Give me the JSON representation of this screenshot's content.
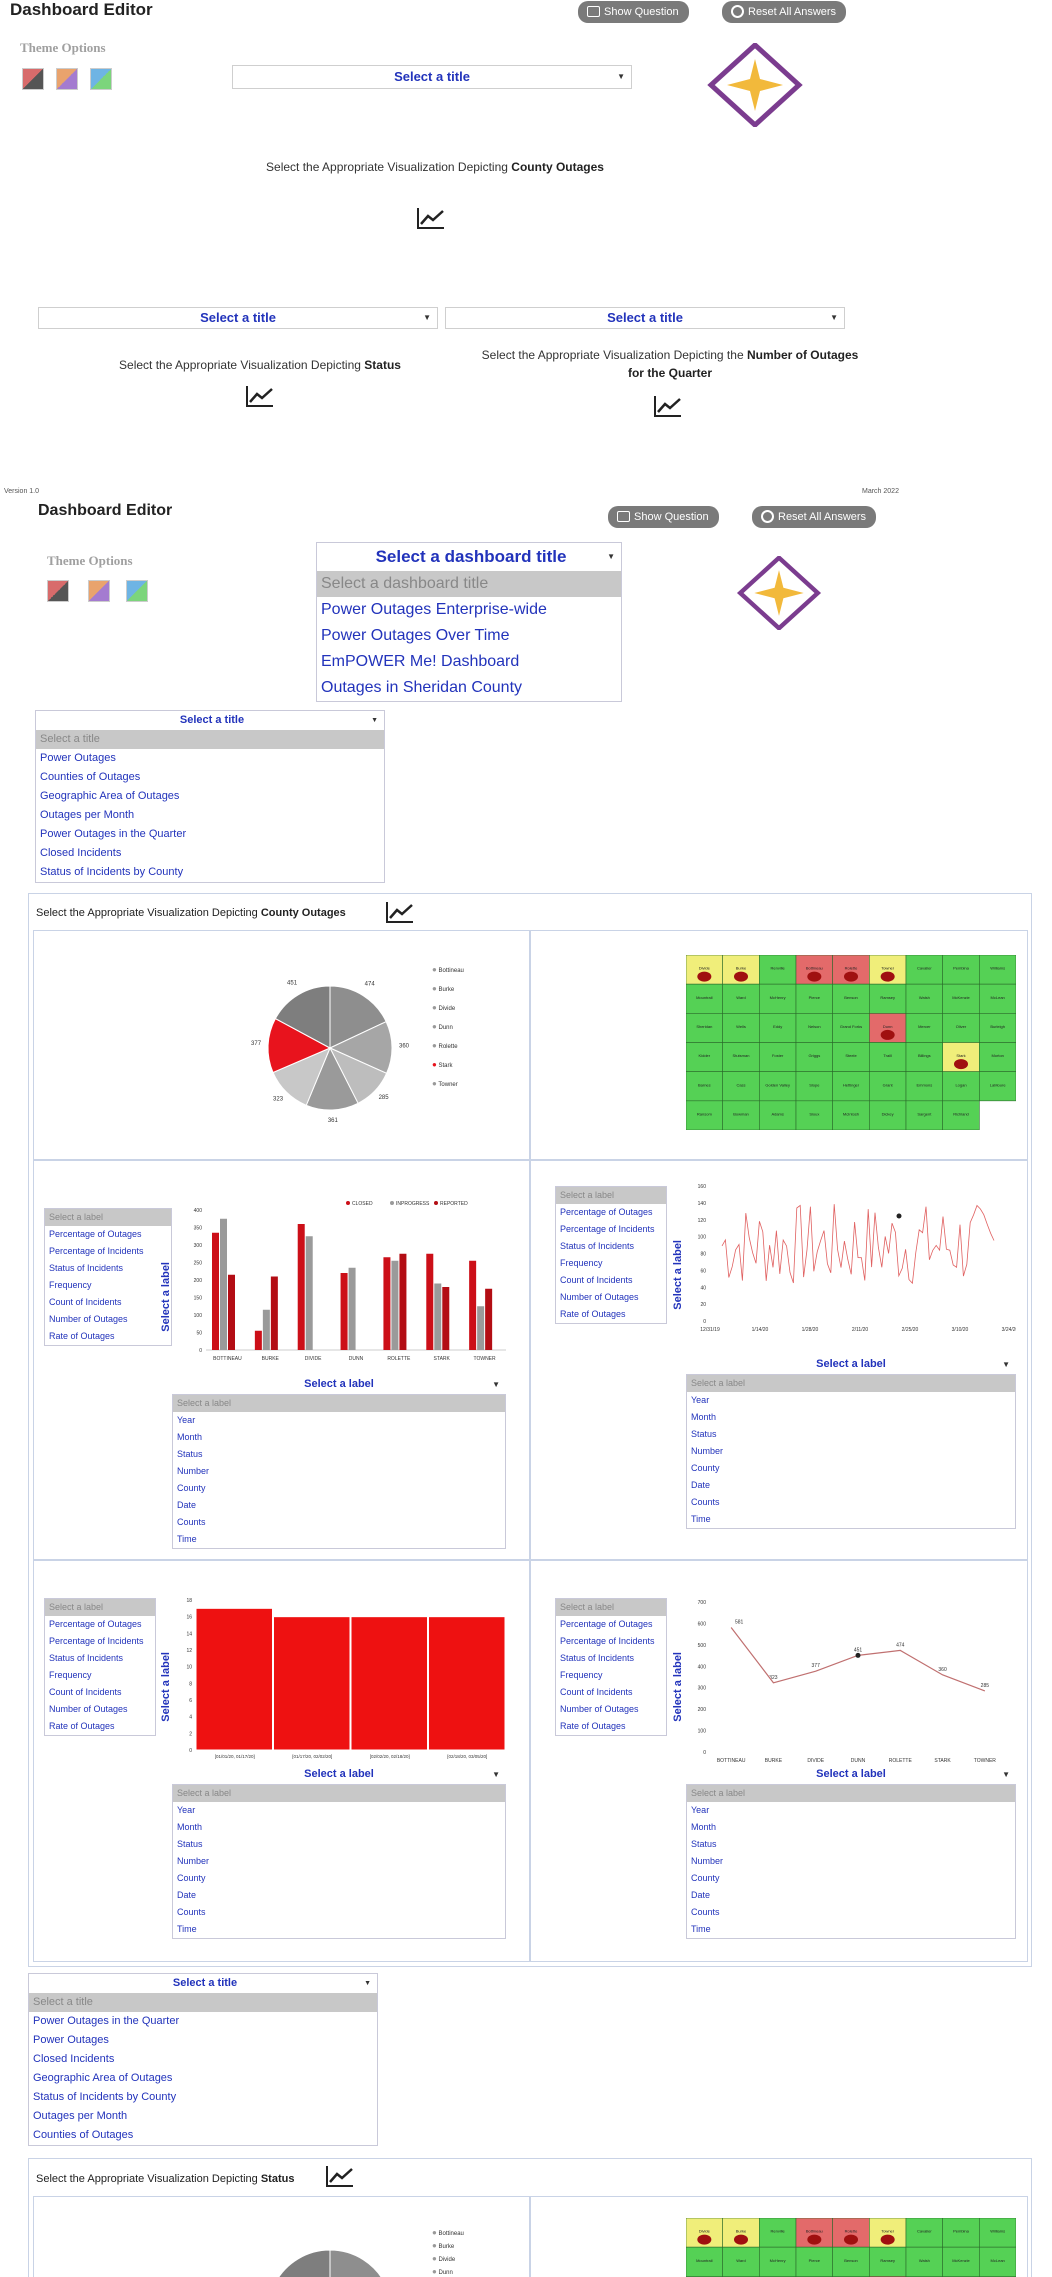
{
  "header": {
    "title": "Dashboard Editor",
    "theme_label": "Theme Options",
    "show_question": "Show Question",
    "reset_answers": "Reset All Answers",
    "version": "Version 1.0",
    "date": "March 2022"
  },
  "top": {
    "select_title": "Select a title",
    "caption_county_pre": "Select the Appropriate Visualization Depicting",
    "caption_county_bold": "County Outages",
    "caption_status_pre": "Select the Appropriate Visualization Depicting",
    "caption_status_bold": "Status",
    "caption_number_pre": "Select the Appropriate Visualization Depicting the",
    "caption_number_bold": "Number of Outages for the Quarter"
  },
  "dashboard_dropdown": {
    "label": "Select a dashboard title",
    "options": [
      "Select a dashboard title",
      "Power Outages Enterprise-wide",
      "Power Outages Over Time",
      "EmPOWER Me! Dashboard",
      "Outages in Sheridan County"
    ]
  },
  "title_dropdown_1": {
    "label": "Select a title",
    "options": [
      "Select a title",
      "Power Outages",
      "Counties of Outages",
      "Geographic Area of Outages",
      "Outages per Month",
      "Power Outages in the Quarter",
      "Closed Incidents",
      "Status of Incidents by County"
    ]
  },
  "section_county": {
    "pre": "Select the Appropriate Visualization Depicting",
    "bold": "County Outages"
  },
  "label_select": "Select a label",
  "label_list_left": [
    "Select a label",
    "Percentage of Outages",
    "Percentage of Incidents",
    "Status of Incidents",
    "Frequency",
    "Count of Incidents",
    "Number of Outages",
    "Rate of Outages"
  ],
  "label_list_bottom": [
    "Select a label",
    "Year",
    "Month",
    "Status",
    "Number",
    "County",
    "Date",
    "Counts",
    "Time"
  ],
  "pie": {
    "legend": [
      "Bottineau",
      "Burke",
      "Divide",
      "Dunn",
      "Rolette",
      "Stark",
      "Towner"
    ],
    "labels": [
      "474",
      "360",
      "285",
      "361",
      "323",
      "377",
      "451"
    ]
  },
  "bar_chart": {
    "legend": [
      "CLOSED",
      "INPROGRESS",
      "REPORTED"
    ],
    "categories": [
      "BOTTINEAU",
      "BURKE",
      "DIVIDE",
      "DUNN",
      "ROLETTE",
      "STARK",
      "TOWNER"
    ],
    "yticks": [
      "400",
      "350",
      "300",
      "250",
      "200",
      "150",
      "100",
      "50",
      "0"
    ]
  },
  "chart_data": [
    {
      "type": "pie",
      "categories": [
        "Bottineau",
        "Burke",
        "Divide",
        "Dunn",
        "Rolette",
        "Stark",
        "Towner"
      ],
      "values": [
        474,
        360,
        285,
        361,
        323,
        377,
        451
      ]
    },
    {
      "type": "bar",
      "categories": [
        "BOTTINEAU",
        "BURKE",
        "DIVIDE",
        "DUNN",
        "ROLETTE",
        "STARK",
        "TOWNER"
      ],
      "series": [
        {
          "name": "CLOSED",
          "values": [
            335,
            55,
            360,
            220,
            265,
            275,
            255
          ]
        },
        {
          "name": "INPROGRESS",
          "values": [
            375,
            115,
            325,
            235,
            255,
            190,
            125
          ]
        },
        {
          "name": "REPORTED",
          "values": [
            215,
            210,
            0,
            0,
            275,
            180,
            175
          ]
        }
      ],
      "ylim": [
        0,
        400
      ]
    },
    {
      "type": "bar",
      "categories": [
        "[01/01/20, 01/17/20]",
        "[01/17/20, 02/02/20]",
        "[02/02/20, 02/18/20]",
        "[02/18/20, 03/05/20]"
      ],
      "values": [
        17,
        16,
        16,
        16
      ],
      "ylim": [
        0,
        18
      ]
    },
    {
      "type": "line",
      "categories": [
        "BOTTINEAU",
        "BURKE",
        "DIVIDE",
        "DUNN",
        "ROLETTE",
        "STARK",
        "TOWNER"
      ],
      "values": [
        581,
        323,
        377,
        451,
        474,
        360,
        285
      ],
      "ylim": [
        0,
        700
      ]
    }
  ],
  "bar2": {
    "categories": [
      "[01/01/20, 01/17/20]",
      "[01/17/20, 02/02/20]",
      "[02/02/20, 02/18/20]",
      "[02/18/20, 03/05/20]"
    ],
    "yticks": [
      "18",
      "16",
      "14",
      "12",
      "10",
      "8",
      "6",
      "4",
      "2",
      "0"
    ]
  },
  "line2": {
    "categories": [
      "BOTTINEAU",
      "BURKE",
      "DIVIDE",
      "DUNN",
      "ROLETTE",
      "STARK",
      "TOWNER"
    ],
    "yticks": [
      "700",
      "600",
      "500",
      "400",
      "300",
      "200",
      "100",
      "0"
    ],
    "labels": [
      "581",
      "323",
      "377",
      "451",
      "474",
      "360",
      "285"
    ]
  },
  "line1": {
    "yticks": [
      "160",
      "140",
      "120",
      "100",
      "80",
      "60",
      "40",
      "20",
      "0"
    ],
    "xticks": [
      "12/31/19",
      "1/14/20",
      "1/28/20",
      "2/11/20",
      "2/25/20",
      "3/10/20",
      "3/24/20"
    ]
  },
  "title_dropdown_2": {
    "label": "Select a title",
    "options": [
      "Select a title",
      "Power Outages in the Quarter",
      "Power Outages",
      "Closed Incidents",
      "Geographic Area of Outages",
      "Status of Incidents by County",
      "Outages per Month",
      "Counties of Outages"
    ]
  },
  "section_status": {
    "pre": "Select the Appropriate Visualization Depicting",
    "bold": "Status"
  },
  "map_counties": [
    "Divide",
    "Burke",
    "Renville",
    "Bottineau",
    "Rolette",
    "Towner",
    "Cavalier",
    "Pembina",
    "Williams",
    "Mountrail",
    "Ward",
    "McHenry",
    "Pierce",
    "Benson",
    "Ramsey",
    "Walsh",
    "McKenzie",
    "McLean",
    "Sheridan",
    "Wells",
    "Eddy",
    "Nelson",
    "Grand Forks",
    "Dunn",
    "Mercer",
    "Oliver",
    "Burleigh",
    "Kidder",
    "Stutsman",
    "Foster",
    "Griggs",
    "Steele",
    "Traill",
    "Billings",
    "Stark",
    "Morton",
    "Barnes",
    "Cass",
    "Golden Valley",
    "Slope",
    "Hettinger",
    "Grant",
    "Emmons",
    "Logan",
    "LaMoure",
    "Ransom",
    "Bowman",
    "Adams",
    "Sioux",
    "McIntosh",
    "Dickey",
    "Sargent",
    "Richland"
  ]
}
